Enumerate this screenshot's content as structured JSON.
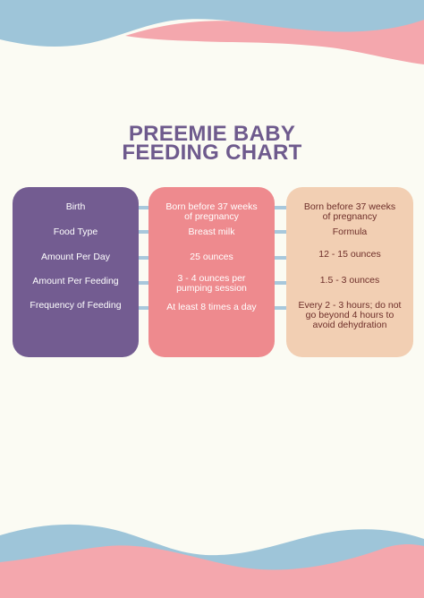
{
  "colors": {
    "background": "#fbfbf3",
    "title": "#6e5a8d",
    "labels_column": "#735c91",
    "breast_milk_column": "#ee8a8e",
    "formula_column": "#f2cfb3",
    "wave_blue": "#9ec5d9",
    "wave_pink": "#f4a7ad",
    "connector": "#a8c8dc"
  },
  "title": {
    "line1": "PREEMIE BABY",
    "line2": "FEEDING CHART"
  },
  "columns": {
    "labels": [
      "Birth",
      "Food Type",
      "Amount Per Day",
      "Amount Per Feeding",
      "Frequency of Feeding"
    ],
    "breast_milk": [
      "Born before 37 weeks\nof pregnancy",
      "Breast milk",
      "25 ounces",
      "3 - 4 ounces per\npumping session",
      "At least 8 times a day"
    ],
    "formula": [
      "Born before 37 weeks\nof pregnancy",
      "Formula",
      "12 - 15 ounces",
      "1.5 - 3 ounces",
      "Every 2 - 3 hours; do not\ngo beyond 4 hours to\navoid dehydration"
    ]
  }
}
